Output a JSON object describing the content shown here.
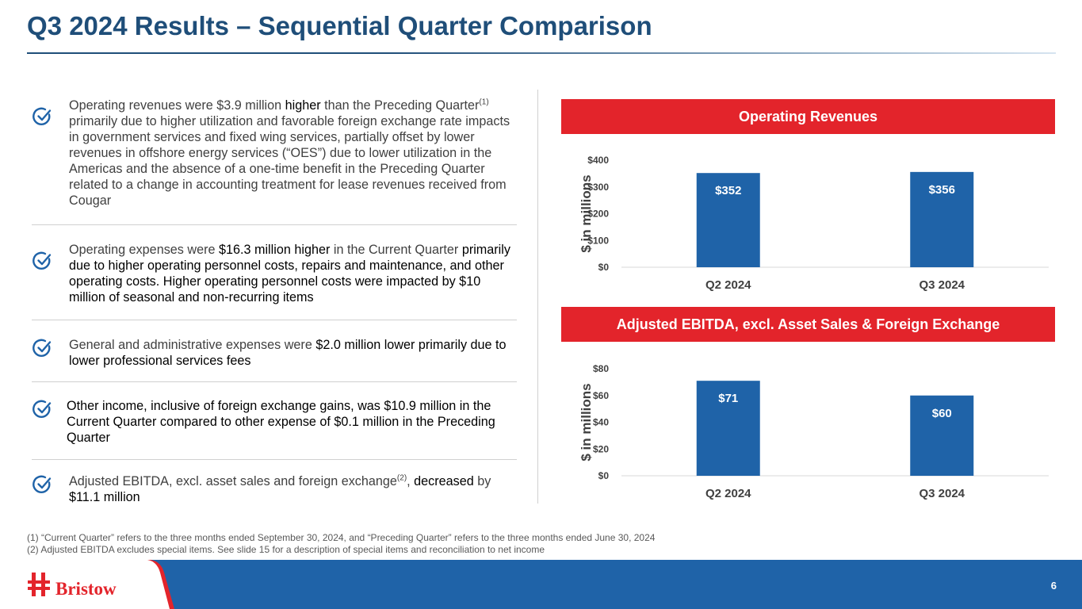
{
  "title": "Q3 2024 Results – Sequential Quarter Comparison",
  "bullets": [
    {
      "p1": "Operating revenues were $3.9 million ",
      "h1": "higher",
      "p2": " than the Preceding Quarter",
      "sup": "(1)",
      "p3": " primarily due to higher utilization and favorable foreign exchange rate impacts in government services and fixed wing services, partially offset by lower revenues in offshore energy services (“OES”) due to lower utilization in the Americas and the absence of a one-time benefit in the Preceding Quarter related to a change in accounting treatment for lease revenues received from Cougar"
    },
    {
      "p1": "Operating expenses were ",
      "h1": "$16.3 million higher",
      "p2": " in the Current Quarter ",
      "h2": "primarily due to higher operating personnel costs, repairs and maintenance, and other operating costs. Higher operating personnel costs were impacted by $10 million of seasonal and non-recurring items"
    },
    {
      "p1": "General and administrative expenses were ",
      "h1": "$2.0 million lower primarily due to lower professional services fees"
    },
    {
      "h1": "Other income, inclusive of foreign exchange gains, was $10.9 million in the Current Quarter compared to other expense of $0.1 million in the Preceding Quarter"
    },
    {
      "p1": "Adjusted EBITDA, excl. asset sales and foreign exchange",
      "sup": "(2)",
      "p2": ", ",
      "h1": "decreased",
      "p3": " by ",
      "h2": "$11.1 million"
    }
  ],
  "chart_data": [
    {
      "type": "bar",
      "title": "Operating Revenues",
      "categories": [
        "Q2 2024",
        "Q3 2024"
      ],
      "values": [
        352,
        356
      ],
      "value_labels": [
        "$352",
        "$356"
      ],
      "yticks": [
        "$0",
        "$100",
        "$200",
        "$300",
        "$400"
      ],
      "ylim": [
        0,
        400
      ],
      "ylabel": "$ in millions",
      "xlabel": ""
    },
    {
      "type": "bar",
      "title": "Adjusted EBITDA, excl. Asset Sales & Foreign Exchange",
      "categories": [
        "Q2 2024",
        "Q3 2024"
      ],
      "values": [
        71,
        60
      ],
      "value_labels": [
        "$71",
        "$60"
      ],
      "yticks": [
        "$0",
        "$20",
        "$40",
        "$60",
        "$80"
      ],
      "ylim": [
        0,
        80
      ],
      "ylabel": "$ in millions",
      "xlabel": ""
    }
  ],
  "footnotes": [
    "(1) “Current Quarter” refers to the three months ended September 30, 2024, and “Preceding Quarter” refers to the three months ended June 30, 2024",
    "(2) Adjusted EBITDA excludes special items. See slide 15 for a description of special items and reconciliation to net income"
  ],
  "logo_text": "Bristow",
  "page_number": "6",
  "colors": {
    "title": "#1f4e79",
    "bar": "#1f63a8",
    "banner": "#e3242b",
    "footer": "#1f63a8"
  }
}
